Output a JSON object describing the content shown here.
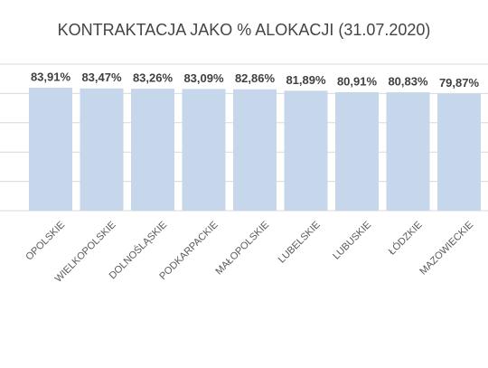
{
  "chart_data": {
    "type": "bar",
    "title": "KONTRAKTACJA  JAKO % ALOKACJI (31.07.2020)",
    "categories": [
      "OPOLSKIE",
      "WIELKOPOLSKIE",
      "DOLNOŚLĄSKIE",
      "PODKARPACKIE",
      "MAŁOPOLSKIE",
      "LUBELSKIE",
      "LUBUSKIE",
      "ŁÓDZKIE",
      "MAZOWIECKIE"
    ],
    "values": [
      83.91,
      83.47,
      83.26,
      83.09,
      82.86,
      81.89,
      80.91,
      80.83,
      79.87
    ],
    "value_labels": [
      "83,91%",
      "83,47%",
      "83,26%",
      "83,09%",
      "82,86%",
      "81,89%",
      "80,91%",
      "80,83%",
      "79,87%"
    ],
    "color": "#c6d6eb",
    "ylim": [
      0,
      100
    ],
    "yticks": [
      0,
      20,
      40,
      60,
      80,
      100
    ],
    "grid": true
  }
}
